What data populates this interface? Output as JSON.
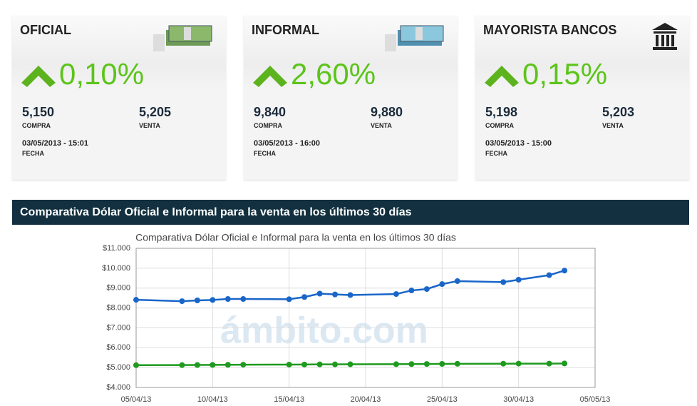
{
  "cards": [
    {
      "title": "OFICIAL",
      "change": "0,10%",
      "buy": "5,150",
      "buy_label": "COMPRA",
      "sell": "5,205",
      "sell_label": "VENTA",
      "date": "03/05/2013 - 15:01",
      "date_label": "FECHA"
    },
    {
      "title": "INFORMAL",
      "change": "2,60%",
      "buy": "9,840",
      "buy_label": "COMPRA",
      "sell": "9,880",
      "sell_label": "VENTA",
      "date": "03/05/2013 - 16:00",
      "date_label": "FECHA"
    },
    {
      "title": "MAYORISTA BANCOS",
      "change": "0,15%",
      "buy": "5,198",
      "buy_label": "COMPRA",
      "sell": "5,203",
      "sell_label": "VENTA",
      "date": "03/05/2013 - 15:00",
      "date_label": "FECHA"
    }
  ],
  "section_title": "Comparativa Dólar Oficial e Informal para la venta en los últimos 30 días",
  "chart_data": {
    "type": "line",
    "title": "Comparativa Dólar Oficial e Informal para la venta en los últimos 30 días",
    "watermark": "ámbito.com",
    "x": [
      "2013-04-05",
      "2013-04-08",
      "2013-04-09",
      "2013-04-10",
      "2013-04-11",
      "2013-04-12",
      "2013-04-15",
      "2013-04-16",
      "2013-04-17",
      "2013-04-18",
      "2013-04-19",
      "2013-04-22",
      "2013-04-23",
      "2013-04-24",
      "2013-04-25",
      "2013-04-26",
      "2013-04-29",
      "2013-04-30",
      "2013-05-02",
      "2013-05-03"
    ],
    "series": [
      {
        "color": "#1a66c8",
        "values": [
          8410,
          8340,
          8380,
          8400,
          8450,
          8450,
          8440,
          8550,
          8720,
          8680,
          8650,
          8700,
          8880,
          8950,
          9200,
          9350,
          9300,
          9420,
          9650,
          9880
        ]
      },
      {
        "color": "#1e9a1e",
        "values": [
          5120,
          5125,
          5130,
          5135,
          5140,
          5145,
          5150,
          5155,
          5160,
          5160,
          5165,
          5170,
          5175,
          5180,
          5185,
          5190,
          5195,
          5200,
          5200,
          5205
        ]
      }
    ],
    "xlim": [
      "2013-04-05",
      "2013-05-05"
    ],
    "xticks": [
      {
        "value": "2013-04-05",
        "label": "05/04/13"
      },
      {
        "value": "2013-04-10",
        "label": "10/04/13"
      },
      {
        "value": "2013-04-15",
        "label": "15/04/13"
      },
      {
        "value": "2013-04-20",
        "label": "20/04/13"
      },
      {
        "value": "2013-04-25",
        "label": "25/04/13"
      },
      {
        "value": "2013-04-30",
        "label": "30/04/13"
      },
      {
        "value": "2013-05-05",
        "label": "05/05/13"
      }
    ],
    "ylim": [
      4000,
      11000
    ],
    "yticks": [
      {
        "value": 4000,
        "label": "$4.000"
      },
      {
        "value": 5000,
        "label": "$5.000"
      },
      {
        "value": 6000,
        "label": "$6.000"
      },
      {
        "value": 7000,
        "label": "$7.000"
      },
      {
        "value": 8000,
        "label": "$8.000"
      },
      {
        "value": 9000,
        "label": "$9.000"
      },
      {
        "value": 10000,
        "label": "$10.000"
      },
      {
        "value": 11000,
        "label": "$11.000"
      }
    ],
    "grid": true
  }
}
